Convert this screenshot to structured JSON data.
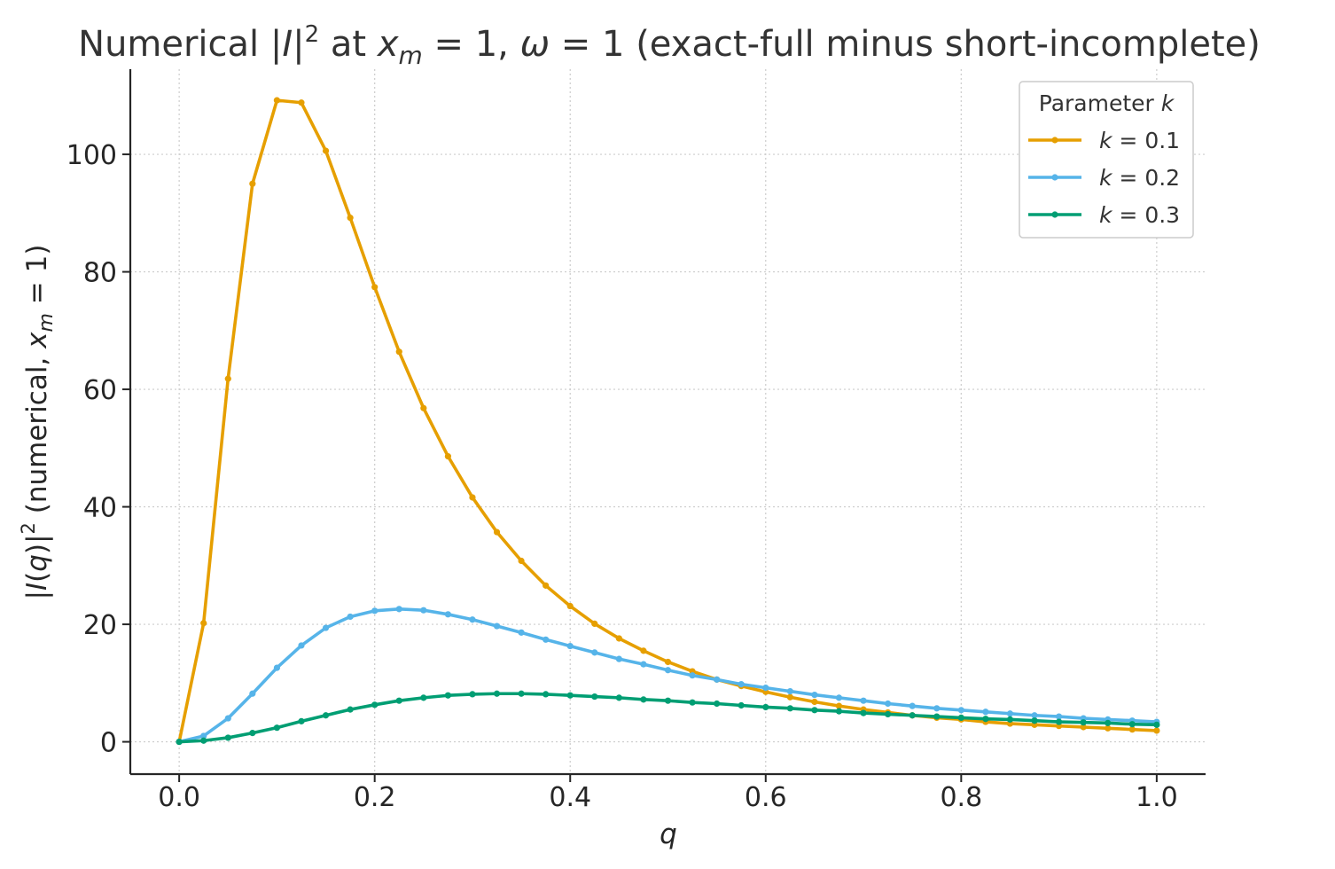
{
  "chart_data": {
    "type": "line",
    "title": "Numerical |I|² at x_m = 1, ω = 1 (exact-full minus short-incomplete)",
    "title_parts": {
      "pre": "Numerical |",
      "I": "I",
      "bar": "|",
      "sup": "2",
      "at": " at ",
      "x": "x",
      "m": "m",
      "eq1": " = 1, ",
      "omega": "ω",
      "eq2": " = 1 (exact-full minus short-incomplete)"
    },
    "xlabel": "q",
    "ylabel": "|I(q)|² (numerical, x_m = 1)",
    "ylabel_parts": {
      "bar1": "|",
      "I": "I",
      "paren_open": "(",
      "q": "q",
      "paren_close": ")|",
      "sup": "2",
      "mid": " (numerical, ",
      "x": "x",
      "m": "m",
      "end": " = 1)"
    },
    "xlim": [
      -0.05,
      1.05
    ],
    "ylim": [
      -5.5,
      114.5
    ],
    "xticks": [
      0.0,
      0.2,
      0.4,
      0.6,
      0.8,
      1.0
    ],
    "xtick_labels": [
      "0.0",
      "0.2",
      "0.4",
      "0.6",
      "0.8",
      "1.0"
    ],
    "yticks": [
      0,
      20,
      40,
      60,
      80,
      100
    ],
    "ytick_labels": [
      "0",
      "20",
      "40",
      "60",
      "80",
      "100"
    ],
    "grid": true,
    "legend_placement": "top-right",
    "legend_title_parts": {
      "text": "Parameter ",
      "k": "k"
    },
    "x": [
      0.0,
      0.025,
      0.05,
      0.075,
      0.1,
      0.125,
      0.15,
      0.175,
      0.2,
      0.225,
      0.25,
      0.275,
      0.3,
      0.325,
      0.35,
      0.375,
      0.4,
      0.425,
      0.45,
      0.475,
      0.5,
      0.525,
      0.55,
      0.575,
      0.6,
      0.625,
      0.65,
      0.675,
      0.7,
      0.725,
      0.75,
      0.775,
      0.8,
      0.825,
      0.85,
      0.875,
      0.9,
      0.925,
      0.95,
      0.975,
      1.0
    ],
    "series": [
      {
        "k": "k",
        "value_label": " = 0.1",
        "color": "#E69F00",
        "values": [
          0.0,
          20.2,
          61.8,
          95.0,
          109.2,
          108.8,
          100.6,
          89.2,
          77.4,
          66.4,
          56.8,
          48.6,
          41.6,
          35.7,
          30.8,
          26.6,
          23.1,
          20.1,
          17.6,
          15.5,
          13.6,
          12.0,
          10.6,
          9.5,
          8.5,
          7.6,
          6.8,
          6.1,
          5.5,
          5.0,
          4.5,
          4.1,
          3.8,
          3.4,
          3.1,
          2.9,
          2.7,
          2.5,
          2.3,
          2.1,
          1.9
        ]
      },
      {
        "k": "k",
        "value_label": " = 0.2",
        "color": "#56B4E9",
        "values": [
          0.0,
          1.0,
          4.0,
          8.2,
          12.6,
          16.4,
          19.4,
          21.3,
          22.3,
          22.6,
          22.4,
          21.7,
          20.8,
          19.7,
          18.6,
          17.4,
          16.3,
          15.2,
          14.1,
          13.2,
          12.2,
          11.3,
          10.6,
          9.8,
          9.2,
          8.6,
          8.0,
          7.5,
          7.0,
          6.5,
          6.1,
          5.7,
          5.4,
          5.1,
          4.8,
          4.5,
          4.3,
          4.0,
          3.8,
          3.6,
          3.4
        ]
      },
      {
        "k": "k",
        "value_label": " = 0.3",
        "color": "#009E73",
        "values": [
          0.0,
          0.2,
          0.7,
          1.5,
          2.4,
          3.5,
          4.5,
          5.5,
          6.3,
          7.0,
          7.5,
          7.9,
          8.1,
          8.2,
          8.2,
          8.1,
          7.9,
          7.7,
          7.5,
          7.2,
          7.0,
          6.7,
          6.5,
          6.2,
          5.9,
          5.7,
          5.4,
          5.2,
          4.9,
          4.7,
          4.5,
          4.3,
          4.1,
          3.9,
          3.8,
          3.6,
          3.4,
          3.3,
          3.2,
          3.0,
          2.9
        ]
      }
    ]
  }
}
